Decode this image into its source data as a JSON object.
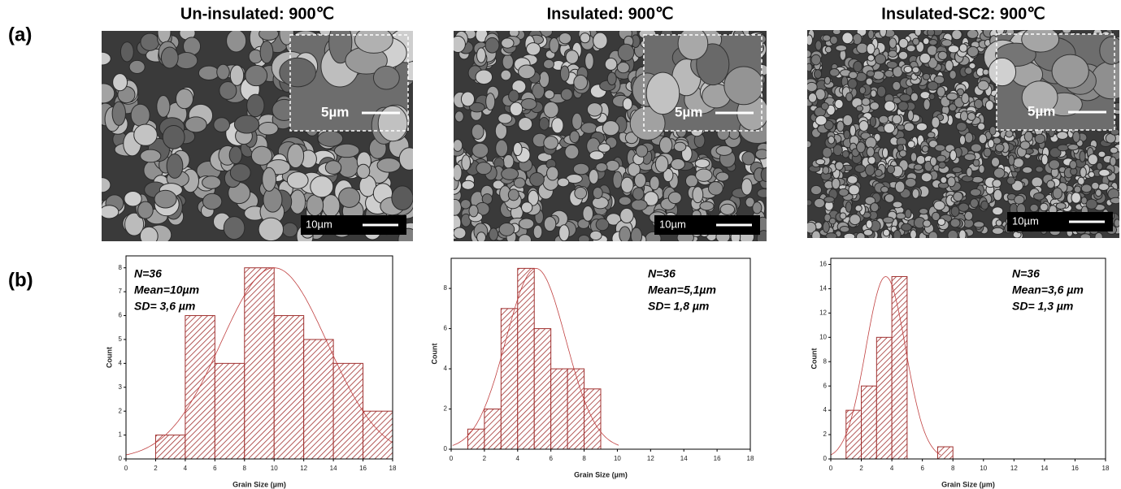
{
  "panel_labels": [
    "(a)",
    "(b)"
  ],
  "images": [
    {
      "title": "Un-insulated: 900℃",
      "scale_main": "10µm",
      "scale_inset": "5µm"
    },
    {
      "title": "Insulated: 900℃",
      "scale_main": "10µm",
      "scale_inset": "5µm"
    },
    {
      "title": "Insulated-SC2: 900℃",
      "scale_main": "10µm",
      "scale_inset": "5µm"
    }
  ],
  "chart_data": [
    {
      "type": "histogram",
      "x_label": "Grain Size (µm)",
      "y_label": "Count",
      "color": "#a0302f",
      "bins": [
        2,
        4,
        6,
        8,
        10,
        12,
        14,
        16,
        18
      ],
      "counts": [
        1,
        6,
        4,
        8,
        6,
        5,
        4,
        2
      ],
      "xlim": [
        0,
        18
      ],
      "xticks": [
        0,
        2,
        4,
        6,
        8,
        10,
        12,
        14,
        16,
        18
      ],
      "ylim": [
        0,
        8.5
      ],
      "yticks": [
        0,
        1,
        2,
        3,
        4,
        5,
        6,
        7,
        8
      ],
      "annotations": [
        "N=36",
        "Mean=10µm",
        "SD= 3,6 µm"
      ],
      "fit": {
        "mean": 10,
        "sd": 3.6,
        "peak": 8
      }
    },
    {
      "type": "histogram",
      "x_label": "Grain Size (µm)",
      "y_label": "Count",
      "color": "#a0302f",
      "bins": [
        1,
        2,
        3,
        4,
        5,
        6,
        7,
        8,
        9
      ],
      "counts": [
        1,
        2,
        7,
        9,
        6,
        4,
        4,
        3
      ],
      "xlim": [
        0,
        18
      ],
      "xticks": [
        0,
        2,
        4,
        6,
        8,
        10,
        12,
        14,
        16,
        18
      ],
      "ylim": [
        0,
        9.5
      ],
      "yticks": [
        0,
        2,
        4,
        6,
        8
      ],
      "annotations": [
        "N=36",
        "Mean=5,1µm",
        "SD= 1,8 µm"
      ],
      "fit": {
        "mean": 5.1,
        "sd": 1.8,
        "peak": 9
      }
    },
    {
      "type": "histogram",
      "x_label": "Grain Size (µm)",
      "y_label": "Count",
      "color": "#a0302f",
      "bins": [
        1,
        2,
        3,
        4,
        5,
        6,
        7,
        8
      ],
      "counts": [
        4,
        6,
        10,
        15,
        0,
        0,
        1
      ],
      "xlim": [
        0,
        18
      ],
      "xticks": [
        0,
        2,
        4,
        6,
        8,
        10,
        12,
        14,
        16,
        18
      ],
      "ylim": [
        0,
        16.5
      ],
      "yticks": [
        0,
        2,
        4,
        6,
        8,
        10,
        12,
        14,
        16
      ],
      "annotations": [
        "N=36",
        "Mean=3,6 µm",
        "SD= 1,3 µm"
      ],
      "fit": {
        "mean": 3.6,
        "sd": 1.3,
        "peak": 15
      }
    }
  ]
}
